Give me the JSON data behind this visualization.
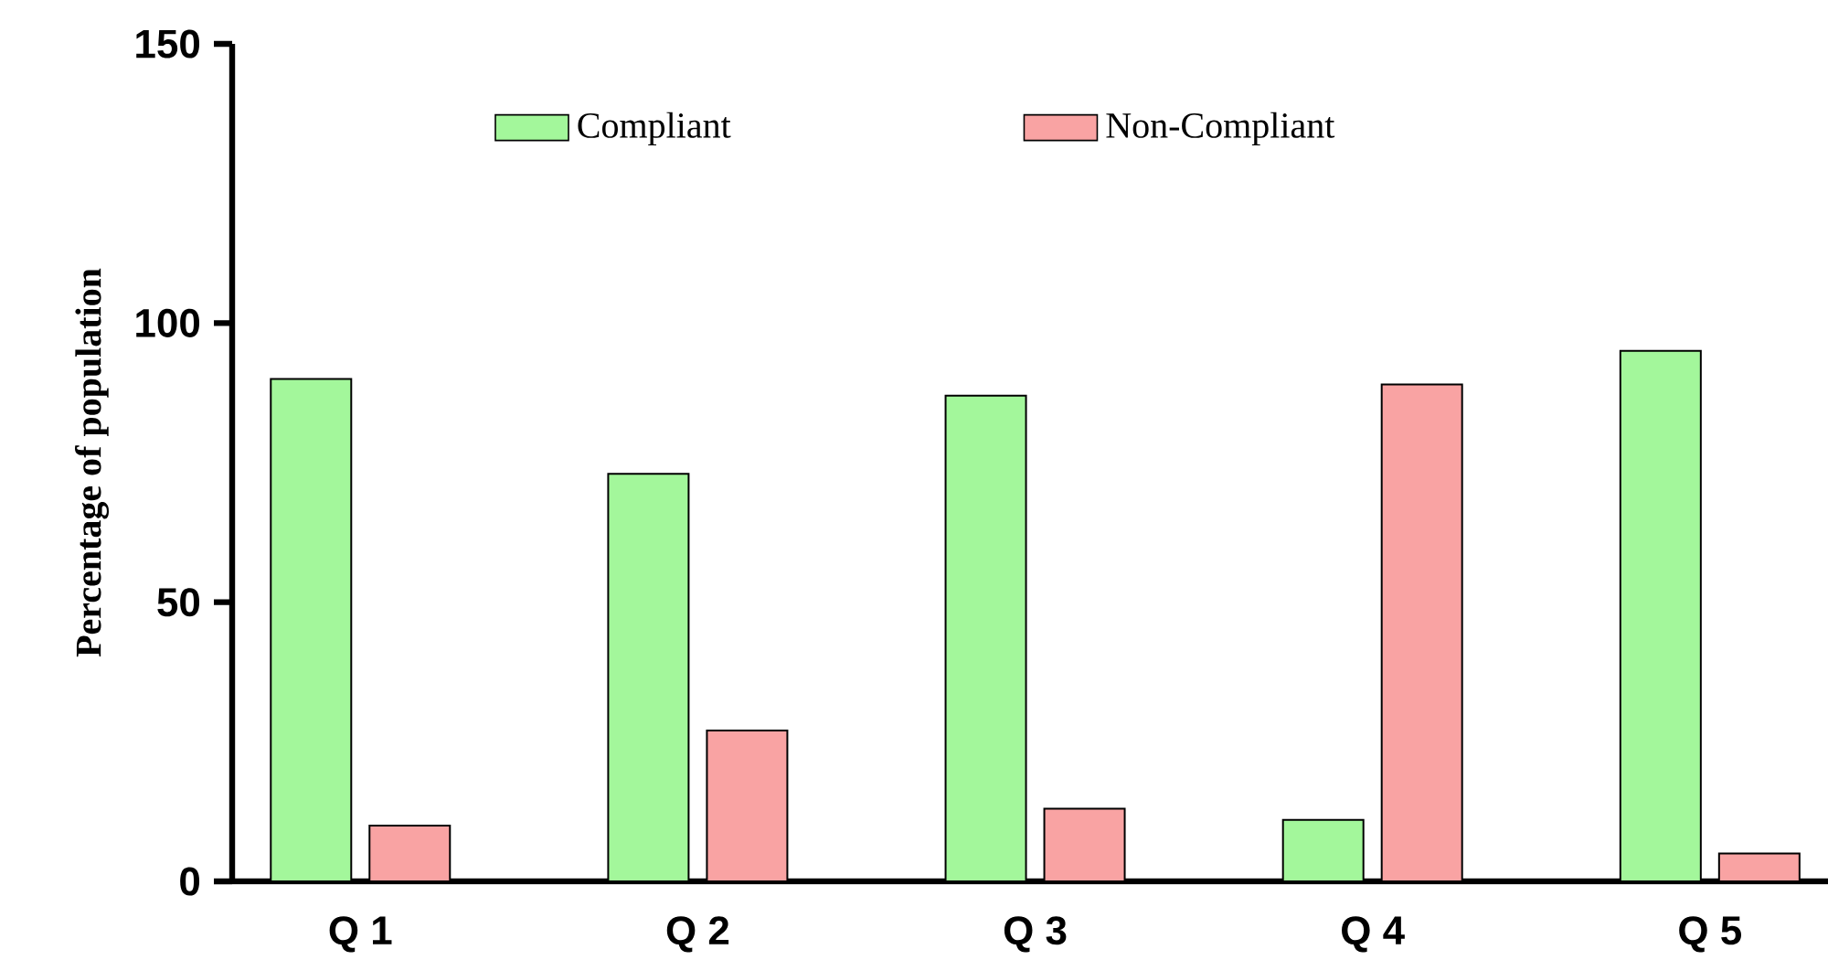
{
  "chart_data": {
    "type": "bar",
    "ylabel": "Percentage of population",
    "categories": [
      "Q 1",
      "Q 2",
      "Q 3",
      "Q 4",
      "Q 5"
    ],
    "series": [
      {
        "name": "Compliant",
        "color": "#a3f79b",
        "values": [
          90,
          73,
          87,
          11,
          95
        ]
      },
      {
        "name": "Non-Compliant",
        "color": "#f9a3a3",
        "values": [
          10,
          27,
          13,
          89,
          5
        ]
      }
    ],
    "ylim": [
      0,
      150
    ],
    "yticks": [
      0,
      50,
      100,
      150
    ],
    "grid": false,
    "legend": "top"
  }
}
